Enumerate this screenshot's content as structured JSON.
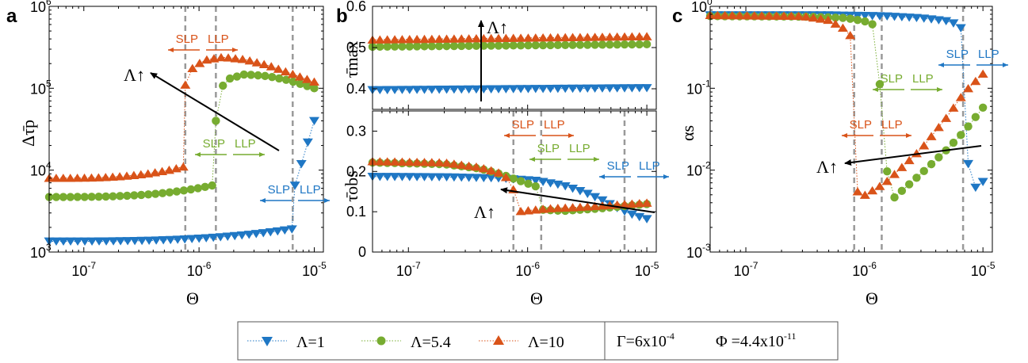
{
  "colors": {
    "lambda1": "#1f77c4",
    "lambda54": "#77ac30",
    "lambda10": "#d95319",
    "axis": "#000000",
    "threshold": "#999999"
  },
  "legend": {
    "series": [
      {
        "label": "Λ=1",
        "marker": "triangle-down",
        "color": "#1f77c4"
      },
      {
        "label": "Λ=5.4",
        "marker": "circle",
        "color": "#77ac30"
      },
      {
        "label": "Λ=10",
        "marker": "triangle-up",
        "color": "#d95319"
      }
    ],
    "params_gamma": "Γ=6x10",
    "params_gamma_exp": "-4",
    "params_phi": "Φ =4.4x10",
    "params_phi_exp": "-11"
  },
  "chart_data": [
    {
      "panel": "a",
      "type": "scatter",
      "ylabel": "Δτ̄p",
      "xlabel": "Θ",
      "x_scale": "log",
      "y_scale": "log",
      "xlim": [
        5e-08,
        1.2e-05
      ],
      "ylim": [
        1000,
        1000000
      ],
      "x_ticks": [
        "10^-7",
        "10^-6",
        "10^-5"
      ],
      "y_ticks": [
        "10^3",
        "10^4",
        "10^5",
        "10^6"
      ],
      "thresholds": [
        7.6e-07,
        1.4e-06,
        6.5e-06
      ],
      "region_labels": [
        {
          "left": "SLP",
          "right": "LLP",
          "color": "lambda10"
        },
        {
          "left": "SLP",
          "right": "LLP",
          "color": "lambda54"
        },
        {
          "left": "SLP",
          "right": "LLP",
          "color": "lambda1"
        }
      ],
      "arrow_label": "Λ↑",
      "series": [
        {
          "name": "Λ=1",
          "color": "lambda1",
          "marker": "triangle-down",
          "segments": [
            {
              "x_range": [
                5e-08,
                6.4e-06
              ],
              "y_start": 1350,
              "y_end": 1900,
              "curve": 3
            },
            {
              "x_range": [
                6.8e-06,
                1e-05
              ],
              "y_start": 6500,
              "y_end": 40000,
              "curve": 1
            }
          ]
        },
        {
          "name": "Λ=5.4",
          "color": "lambda54",
          "marker": "circle",
          "segments": [
            {
              "x_range": [
                5e-08,
                1.3e-06
              ],
              "y_start": 4700,
              "y_end": 6500,
              "curve": 3
            },
            {
              "x_range": [
                1.4e-06,
                1e-05
              ],
              "points": [
                [
                  1.4e-06,
                  40000
                ],
                [
                  1.5e-06,
                  95000
                ],
                [
                  1.8e-06,
                  130000
                ],
                [
                  2.5e-06,
                  148000
                ],
                [
                  4e-06,
                  140000
                ],
                [
                  6e-06,
                  125000
                ],
                [
                  1e-05,
                  100000
                ]
              ]
            }
          ]
        },
        {
          "name": "Λ=10",
          "color": "lambda10",
          "marker": "triangle-up",
          "segments": [
            {
              "x_range": [
                5e-08,
                7.3e-07
              ],
              "y_start": 8000,
              "y_end": 11000,
              "curve": 3
            },
            {
              "x_range": [
                7.6e-07,
                1e-05
              ],
              "points": [
                [
                  7.6e-07,
                  110000
                ],
                [
                  8.5e-07,
                  170000
                ],
                [
                  1.1e-06,
                  220000
                ],
                [
                  1.6e-06,
                  240000
                ],
                [
                  2.5e-06,
                  225000
                ],
                [
                  4e-06,
                  190000
                ],
                [
                  6e-06,
                  155000
                ],
                [
                  1e-05,
                  120000
                ]
              ]
            }
          ]
        }
      ]
    },
    {
      "panel": "b-top",
      "type": "scatter",
      "ylabel": "τ̄max",
      "x_scale": "log",
      "y_scale": "linear",
      "xlim": [
        5e-08,
        1.2e-05
      ],
      "ylim": [
        0.35,
        0.6
      ],
      "y_ticks": [
        0.4,
        0.5,
        0.6
      ],
      "arrow_label": "Λ↑",
      "series": [
        {
          "name": "Λ=1",
          "color": "lambda1",
          "marker": "triangle-down",
          "y_start": 0.397,
          "y_end": 0.402
        },
        {
          "name": "Λ=5.4",
          "color": "lambda54",
          "marker": "circle",
          "y_start": 0.502,
          "y_end": 0.508
        },
        {
          "name": "Λ=10",
          "color": "lambda10",
          "marker": "triangle-up",
          "y_start": 0.519,
          "y_end": 0.527
        }
      ]
    },
    {
      "panel": "b-bottom",
      "type": "scatter",
      "ylabel": "τ̄obs",
      "xlabel": "Θ",
      "x_scale": "log",
      "y_scale": "linear",
      "xlim": [
        5e-08,
        1.2e-05
      ],
      "ylim": [
        0,
        0.35
      ],
      "x_ticks": [
        "10^-7",
        "10^-6",
        "10^-5"
      ],
      "y_ticks": [
        0,
        0.1,
        0.2,
        0.3
      ],
      "thresholds": [
        7.6e-07,
        1.3e-06,
        6.5e-06
      ],
      "arrow_label": "Λ↑",
      "series": [
        {
          "name": "Λ=1",
          "color": "lambda1",
          "marker": "triangle-down",
          "points": [
            [
              5e-08,
              0.187
            ],
            [
              2e-07,
              0.186
            ],
            [
              6e-07,
              0.183
            ],
            [
              1.2e-06,
              0.177
            ],
            [
              2e-06,
              0.165
            ],
            [
              3e-06,
              0.148
            ],
            [
              4.5e-06,
              0.125
            ],
            [
              6e-06,
              0.105
            ],
            [
              8e-06,
              0.09
            ],
            [
              1e-05,
              0.082
            ]
          ]
        },
        {
          "name": "Λ=5.4",
          "color": "lambda54",
          "marker": "circle",
          "points": [
            [
              5e-08,
              0.222
            ],
            [
              2e-07,
              0.218
            ],
            [
              4e-07,
              0.207
            ],
            [
              6e-07,
              0.193
            ],
            [
              8e-07,
              0.18
            ],
            [
              1e-06,
              0.17
            ],
            [
              1.25e-06,
              0.16
            ],
            [
              1.3e-06,
              0.105
            ],
            [
              2e-06,
              0.102
            ],
            [
              4e-06,
              0.108
            ],
            [
              7e-06,
              0.115
            ],
            [
              1e-05,
              0.119
            ]
          ]
        },
        {
          "name": "Λ=10",
          "color": "lambda10",
          "marker": "triangle-up",
          "points": [
            [
              5e-08,
              0.225
            ],
            [
              2e-07,
              0.222
            ],
            [
              4e-07,
              0.21
            ],
            [
              6e-07,
              0.195
            ],
            [
              7.3e-07,
              0.175
            ],
            [
              7.6e-07,
              0.155
            ],
            [
              7.9e-07,
              0.1
            ],
            [
              1.5e-06,
              0.108
            ],
            [
              3e-06,
              0.112
            ],
            [
              6e-06,
              0.118
            ],
            [
              1e-05,
              0.122
            ]
          ]
        }
      ],
      "region_labels": [
        {
          "left": "SLP",
          "right": "LLP",
          "color": "lambda10"
        },
        {
          "left": "SLP",
          "right": "LLP",
          "color": "lambda54"
        },
        {
          "left": "SLP",
          "right": "LLP",
          "color": "lambda1"
        }
      ]
    },
    {
      "panel": "c",
      "type": "scatter",
      "ylabel": "αs",
      "xlabel": "Θ",
      "x_scale": "log",
      "y_scale": "log",
      "xlim": [
        5e-08,
        1.2e-05
      ],
      "ylim": [
        0.001,
        1
      ],
      "x_ticks": [
        "10^-7",
        "10^-6",
        "10^-5"
      ],
      "y_ticks": [
        "10^-3",
        "10^-2",
        "10^-1",
        "10^0"
      ],
      "thresholds": [
        8.2e-07,
        1.4e-06,
        6.8e-06
      ],
      "arrow_label": "Λ↑",
      "series": [
        {
          "name": "Λ=1",
          "color": "lambda1",
          "marker": "triangle-down",
          "points": [
            [
              5e-08,
              0.78
            ],
            [
              5e-07,
              0.78
            ],
            [
              1.5e-06,
              0.76
            ],
            [
              3e-06,
              0.72
            ],
            [
              5e-06,
              0.66
            ],
            [
              6.5e-06,
              0.58
            ],
            [
              6.8e-06,
              0.05
            ],
            [
              7.5e-06,
              0.012
            ],
            [
              8.5e-06,
              0.006
            ],
            [
              1e-05,
              0.0072
            ]
          ]
        },
        {
          "name": "Λ=5.4",
          "color": "lambda54",
          "marker": "circle",
          "points": [
            [
              5e-08,
              0.76
            ],
            [
              3e-07,
              0.75
            ],
            [
              7e-07,
              0.72
            ],
            [
              1e-06,
              0.66
            ],
            [
              1.3e-06,
              0.57
            ],
            [
              1.4e-06,
              0.019
            ],
            [
              1.75e-06,
              0.0045
            ],
            [
              3e-06,
              0.009
            ],
            [
              5e-06,
              0.018
            ],
            [
              7e-06,
              0.03
            ],
            [
              1e-05,
              0.058
            ]
          ]
        },
        {
          "name": "Λ=10",
          "color": "lambda10",
          "marker": "triangle-up",
          "points": [
            [
              5e-08,
              0.78
            ],
            [
              3e-07,
              0.76
            ],
            [
              5e-07,
              0.68
            ],
            [
              7e-07,
              0.52
            ],
            [
              8e-07,
              0.4
            ],
            [
              8.2e-07,
              0.009
            ],
            [
              9e-07,
              0.0045
            ],
            [
              1.5e-06,
              0.007
            ],
            [
              3e-06,
              0.018
            ],
            [
              5e-06,
              0.045
            ],
            [
              7e-06,
              0.09
            ],
            [
              1e-05,
              0.15
            ]
          ]
        }
      ],
      "region_labels": [
        {
          "left": "SLP",
          "right": "LLP",
          "color": "lambda10"
        },
        {
          "left": "SLP",
          "right": "LLP",
          "color": "lambda54"
        },
        {
          "left": "SLP",
          "right": "LLP",
          "color": "lambda1"
        }
      ]
    }
  ],
  "panel_letters": [
    "a",
    "b",
    "c"
  ]
}
